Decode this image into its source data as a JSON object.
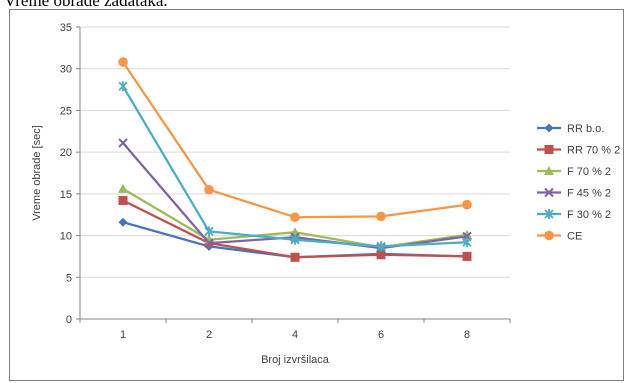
{
  "page": {
    "top_text": "Vreme obrade zadataka."
  },
  "chart_data": {
    "type": "line",
    "title": "",
    "xlabel": "Broj izvršilaca",
    "ylabel": "Vreme obrade [sec]",
    "categories": [
      "1",
      "2",
      "4",
      "6",
      "8"
    ],
    "ylim": [
      0,
      35
    ],
    "yticks": [
      0,
      5,
      10,
      15,
      20,
      25,
      30,
      35
    ],
    "grid": "horizontal",
    "legend": "right",
    "series": [
      {
        "name": "RR b.o.",
        "color": "#4472c4",
        "marker": "diamond",
        "values": [
          11.6,
          8.7,
          7.4,
          7.8,
          7.5
        ]
      },
      {
        "name": "RR 70 % 2",
        "color": "#c0504d",
        "marker": "square",
        "values": [
          14.2,
          9.1,
          7.4,
          7.7,
          7.5
        ]
      },
      {
        "name": "F 70 % 2",
        "color": "#9bbb59",
        "marker": "triangle",
        "values": [
          15.6,
          9.5,
          10.4,
          8.6,
          10.1
        ]
      },
      {
        "name": "F 45 % 2",
        "color": "#8064a2",
        "marker": "x",
        "values": [
          21.1,
          9.1,
          9.8,
          8.5,
          9.9
        ]
      },
      {
        "name": "F 30 % 2",
        "color": "#4bacc6",
        "marker": "asterisk",
        "values": [
          27.9,
          10.5,
          9.5,
          8.7,
          9.2
        ]
      },
      {
        "name": "CE",
        "color": "#f79646",
        "marker": "circle",
        "values": [
          30.8,
          15.5,
          12.2,
          12.3,
          13.7
        ]
      }
    ]
  }
}
